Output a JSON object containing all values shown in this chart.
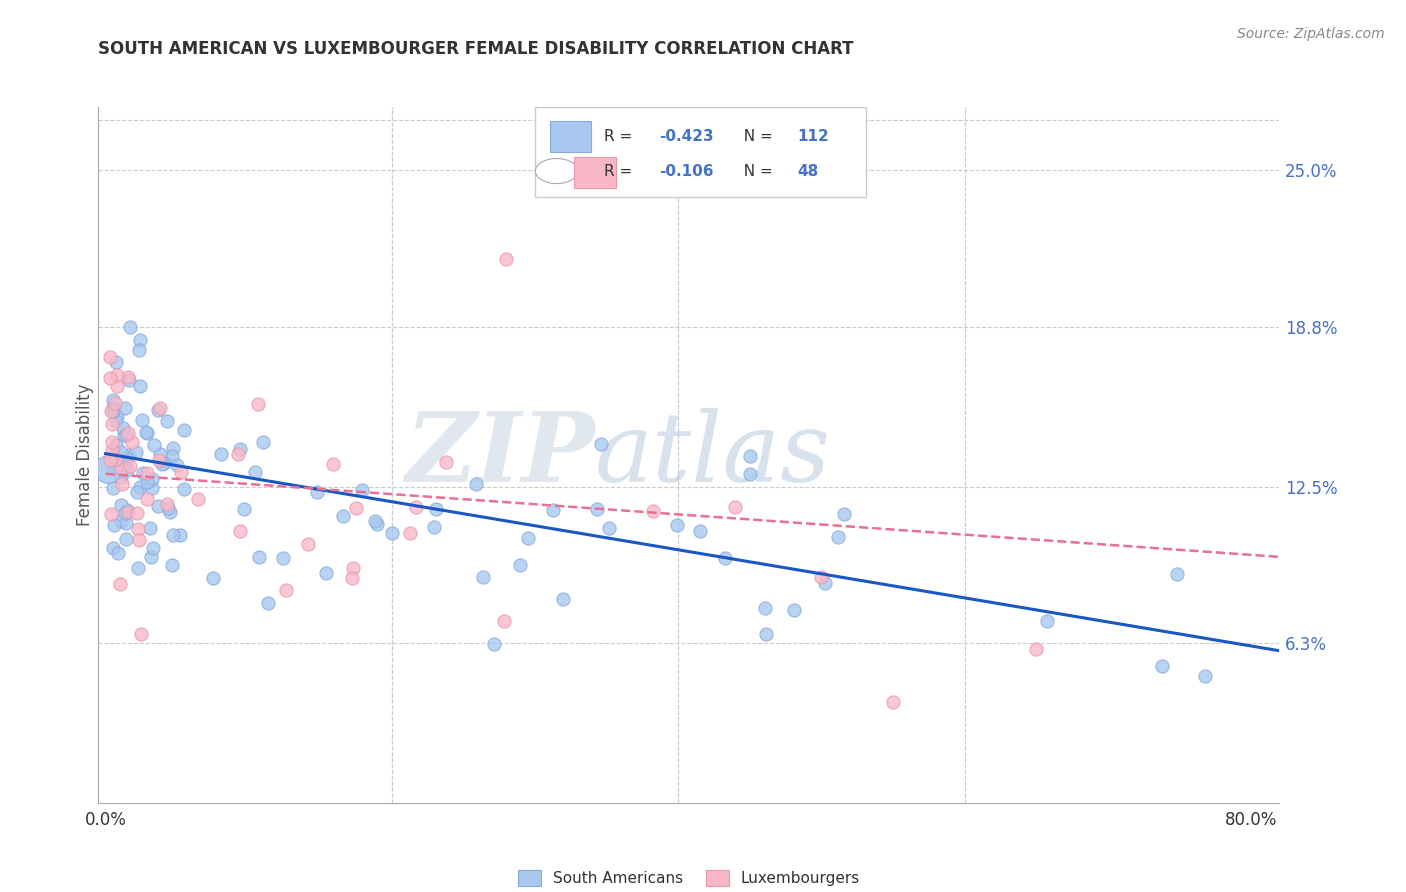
{
  "title": "SOUTH AMERICAN VS LUXEMBOURGER FEMALE DISABILITY CORRELATION CHART",
  "source": "Source: ZipAtlas.com",
  "ylabel": "Female Disability",
  "ytick_values": [
    0.25,
    0.188,
    0.125,
    0.063
  ],
  "ytick_labels": [
    "25.0%",
    "18.8%",
    "12.5%",
    "6.3%"
  ],
  "xlim": [
    -0.005,
    0.82
  ],
  "ylim": [
    0.0,
    0.275
  ],
  "sa_color": "#a8c8f0",
  "sa_edge": "#88aadd",
  "lux_color": "#f8b8c8",
  "lux_edge": "#e898a8",
  "sa_line_color": "#1a56c4",
  "lux_line_color": "#e87090",
  "grid_color": "#cccccc",
  "right_tick_color": "#4472c4",
  "text_color": "#333333",
  "source_color": "#888888",
  "watermark_zip_color": "#c8d8e8",
  "watermark_atlas_color": "#a8bcd0",
  "sa_R": -0.423,
  "sa_N": 112,
  "lux_R": -0.106,
  "lux_N": 48,
  "sa_intercept": 0.138,
  "sa_slope": -0.095,
  "lux_intercept": 0.13,
  "lux_slope": -0.04
}
